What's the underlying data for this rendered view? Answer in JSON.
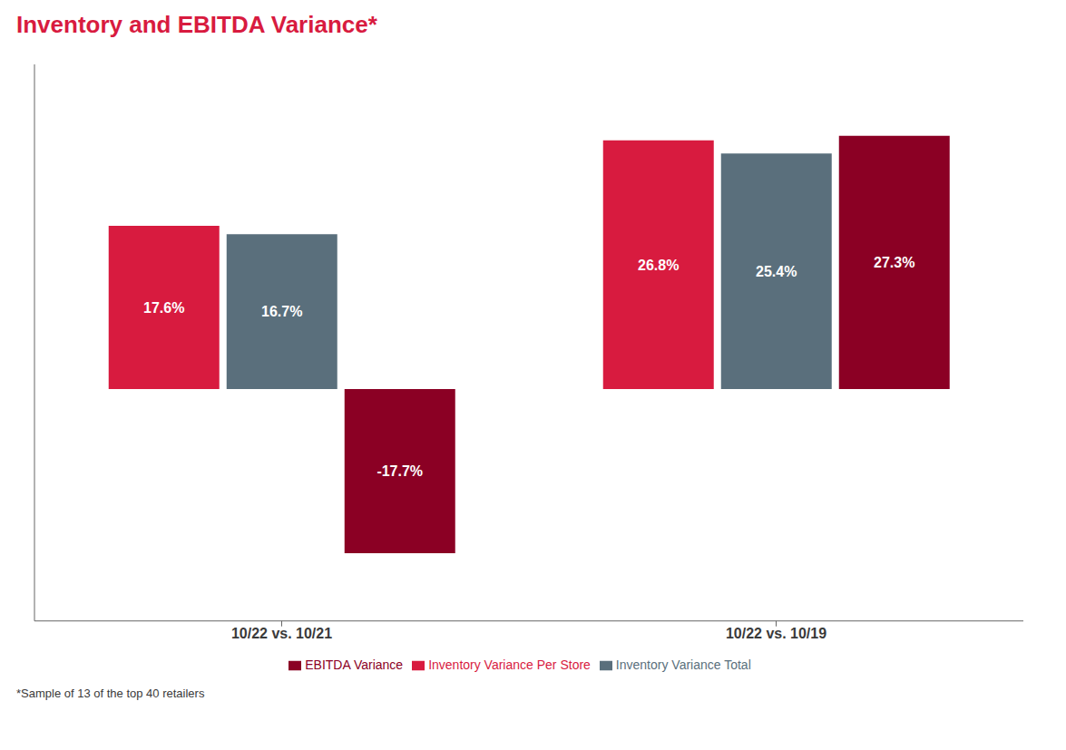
{
  "chart_data": {
    "type": "bar",
    "title": "Inventory and EBITDA Variance*",
    "annotations": [
      "*Sample of 13 of the top 40 retailers"
    ],
    "categories": [
      "10/22 vs. 10/21",
      "10/22 vs. 10/19"
    ],
    "series": [
      {
        "name": "Inventory Variance Per Store",
        "color": "#D81B3F",
        "values": [
          17.6,
          26.8
        ],
        "value_labels": [
          "17.6%",
          "26.8%"
        ]
      },
      {
        "name": "Inventory Variance Total",
        "color": "#5A6F7C",
        "values": [
          16.7,
          25.4
        ],
        "value_labels": [
          "16.7%",
          "25.4%"
        ]
      },
      {
        "name": "EBITDA Variance",
        "color": "#8B0024",
        "values": [
          -17.7,
          27.3
        ],
        "value_labels": [
          "-17.7%",
          "27.3%"
        ]
      }
    ],
    "ylim": [
      -25,
      35
    ],
    "grid": false,
    "legend": "bottom",
    "data_labels": true,
    "tick_labels": "x"
  }
}
